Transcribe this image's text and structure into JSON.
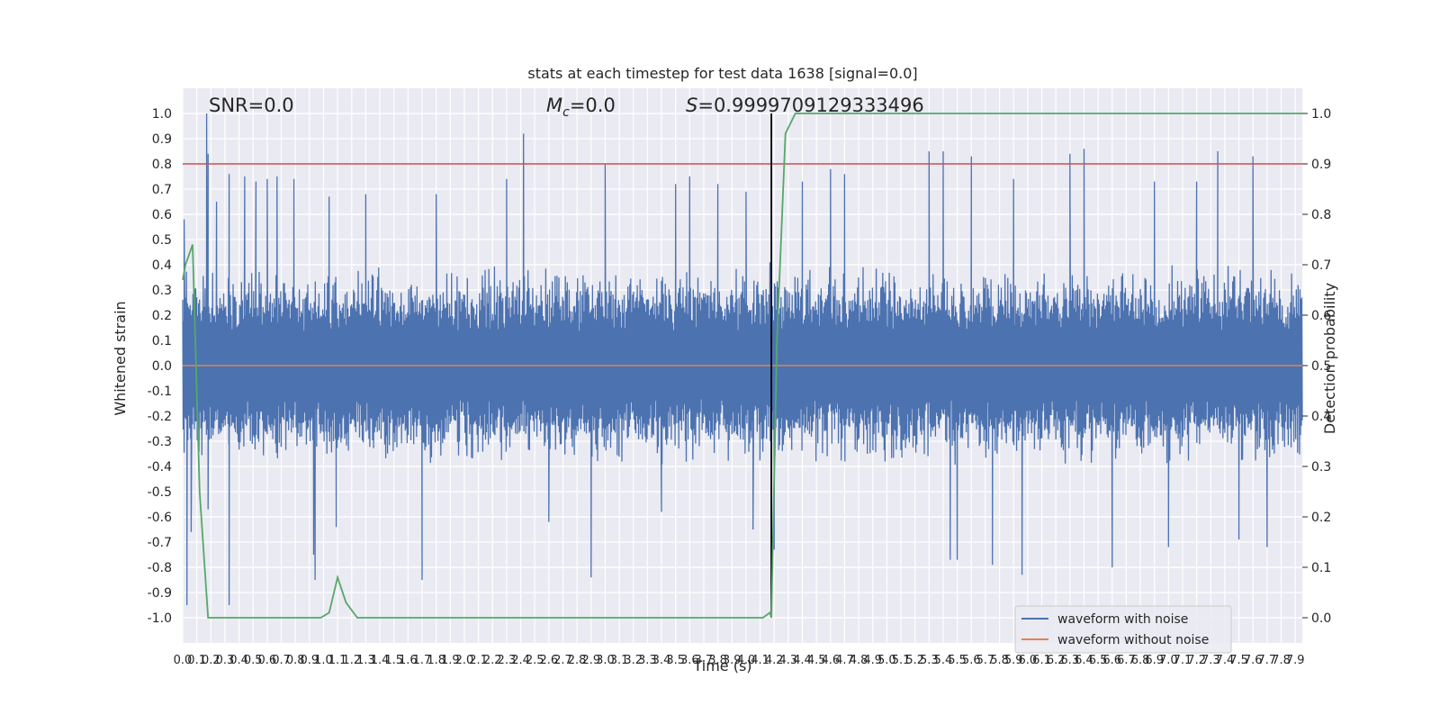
{
  "chart_data": {
    "type": "line",
    "title": "stats at each timestep for test data 1638 [signal=0.0]",
    "xlabel": "Time (s)",
    "ylabel": "Whitened strain",
    "ylabel_right": "Detection probability",
    "xlim": [
      0.0,
      7.95
    ],
    "ylim": [
      -1.1,
      1.1
    ],
    "ylim_right": [
      -0.05,
      1.05
    ],
    "x_ticks": [
      "0.0",
      "0.1",
      "0.2",
      "0.3",
      "0.4",
      "0.5",
      "0.6",
      "0.7",
      "0.8",
      "0.9",
      "1.0",
      "1.1",
      "1.2",
      "1.3",
      "1.4",
      "1.5",
      "1.6",
      "1.7",
      "1.8",
      "1.9",
      "2.0",
      "2.1",
      "2.2",
      "2.3",
      "2.4",
      "2.5",
      "2.6",
      "2.7",
      "2.8",
      "2.9",
      "3.0",
      "3.1",
      "3.2",
      "3.3",
      "3.4",
      "3.5",
      "3.6",
      "3.7",
      "3.8",
      "3.9",
      "4.0",
      "4.1",
      "4.2",
      "4.3",
      "4.4",
      "4.5",
      "4.6",
      "4.7",
      "4.8",
      "4.9",
      "5.0",
      "5.1",
      "5.2",
      "5.3",
      "5.4",
      "5.5",
      "5.6",
      "5.7",
      "5.8",
      "5.9",
      "6.0",
      "6.1",
      "6.2",
      "6.3",
      "6.4",
      "6.5",
      "6.6",
      "6.7",
      "6.8",
      "6.9",
      "7.0",
      "7.1",
      "7.2",
      "7.3",
      "7.4",
      "7.5",
      "7.6",
      "7.7",
      "7.8",
      "7.9"
    ],
    "y_ticks": [
      "1.0",
      "0.9",
      "0.8",
      "0.7",
      "0.6",
      "0.5",
      "0.4",
      "0.3",
      "0.2",
      "0.1",
      "0.0",
      "-0.1",
      "-0.2",
      "-0.3",
      "-0.4",
      "-0.5",
      "-0.6",
      "-0.7",
      "-0.8",
      "-0.9",
      "-1.0"
    ],
    "y_ticks_right": [
      "1.0",
      "0.9",
      "0.8",
      "0.7",
      "0.6",
      "0.5",
      "0.4",
      "0.3",
      "0.2",
      "0.1",
      "0.0"
    ],
    "annotations": {
      "snr": "SNR=0.0",
      "mc_symbol": "M",
      "mc_sub": "c",
      "mc_value": "=0.0",
      "s_symbol": "S",
      "s_value": "=0.9999709129333496"
    },
    "threshold_right": 0.9,
    "marker_x": 4.18,
    "series": [
      {
        "name": "waveform with noise",
        "color": "#4c72b0",
        "axis": "left",
        "typical_abs": 0.4,
        "peaks": [
          [
            0.01,
            0.58
          ],
          [
            0.03,
            -0.95
          ],
          [
            0.06,
            -0.66
          ],
          [
            0.17,
            1.0
          ],
          [
            0.18,
            0.84
          ],
          [
            0.18,
            -0.57
          ],
          [
            0.24,
            0.65
          ],
          [
            0.33,
            0.76
          ],
          [
            0.33,
            -0.95
          ],
          [
            0.44,
            0.75
          ],
          [
            0.52,
            0.73
          ],
          [
            0.6,
            0.74
          ],
          [
            0.67,
            0.75
          ],
          [
            0.79,
            0.74
          ],
          [
            0.93,
            -0.75
          ],
          [
            0.94,
            -0.85
          ],
          [
            1.04,
            0.67
          ],
          [
            1.09,
            -0.64
          ],
          [
            1.3,
            0.68
          ],
          [
            1.7,
            -0.85
          ],
          [
            1.8,
            0.68
          ],
          [
            2.3,
            0.74
          ],
          [
            2.42,
            0.92
          ],
          [
            2.6,
            -0.62
          ],
          [
            2.9,
            -0.84
          ],
          [
            3.0,
            0.8
          ],
          [
            3.4,
            -0.58
          ],
          [
            3.5,
            0.72
          ],
          [
            3.6,
            0.75
          ],
          [
            3.8,
            0.72
          ],
          [
            4.0,
            0.69
          ],
          [
            4.05,
            -0.65
          ],
          [
            4.17,
            0.41
          ],
          [
            4.18,
            -0.95
          ],
          [
            4.2,
            -0.73
          ],
          [
            4.4,
            0.73
          ],
          [
            4.6,
            0.78
          ],
          [
            4.7,
            0.76
          ],
          [
            5.3,
            0.85
          ],
          [
            5.4,
            0.85
          ],
          [
            5.45,
            -0.77
          ],
          [
            5.5,
            -0.77
          ],
          [
            5.6,
            0.83
          ],
          [
            5.75,
            -0.79
          ],
          [
            5.9,
            0.74
          ],
          [
            5.96,
            -0.83
          ],
          [
            6.3,
            0.84
          ],
          [
            6.4,
            0.86
          ],
          [
            6.6,
            -0.8
          ],
          [
            6.9,
            0.73
          ],
          [
            7.0,
            -0.72
          ],
          [
            7.2,
            0.73
          ],
          [
            7.35,
            0.85
          ],
          [
            7.5,
            -0.69
          ],
          [
            7.6,
            0.83
          ],
          [
            7.7,
            -0.72
          ]
        ]
      },
      {
        "name": "waveform without noise",
        "color": "#dd8452",
        "axis": "left",
        "x": [
          0.0,
          7.95
        ],
        "y": [
          0.0,
          0.0
        ]
      },
      {
        "name": "detection probability",
        "color": "#55a868",
        "axis": "right",
        "x": [
          0.0,
          0.02,
          0.07,
          0.12,
          0.18,
          0.2,
          0.25,
          0.3,
          0.5,
          0.8,
          0.9,
          0.98,
          1.04,
          1.1,
          1.16,
          1.24,
          1.3,
          1.5,
          2.0,
          2.5,
          3.0,
          3.5,
          4.0,
          4.12,
          4.17,
          4.18,
          4.22,
          4.28,
          4.35,
          5.0,
          6.0,
          7.0,
          7.95
        ],
        "y": [
          0.67,
          0.7,
          0.74,
          0.25,
          0.0,
          0.0,
          0.0,
          0.0,
          0.0,
          0.0,
          0.0,
          0.0,
          0.01,
          0.08,
          0.03,
          0.0,
          0.0,
          0.0,
          0.0,
          0.0,
          0.0,
          0.0,
          0.0,
          0.0,
          0.01,
          0.0,
          0.55,
          0.96,
          1.0,
          1.0,
          1.0,
          1.0,
          1.0
        ]
      }
    ],
    "legend": {
      "placement": "lower-right",
      "entries": [
        "waveform with noise",
        "waveform without noise"
      ]
    },
    "grid": true,
    "colors": {
      "background": "#eaeaf2",
      "grid": "#ffffff",
      "waveform": "#4c72b0",
      "clean": "#dd8452",
      "probability": "#55a868",
      "threshold": "#c44e52",
      "marker": "#000000"
    }
  }
}
